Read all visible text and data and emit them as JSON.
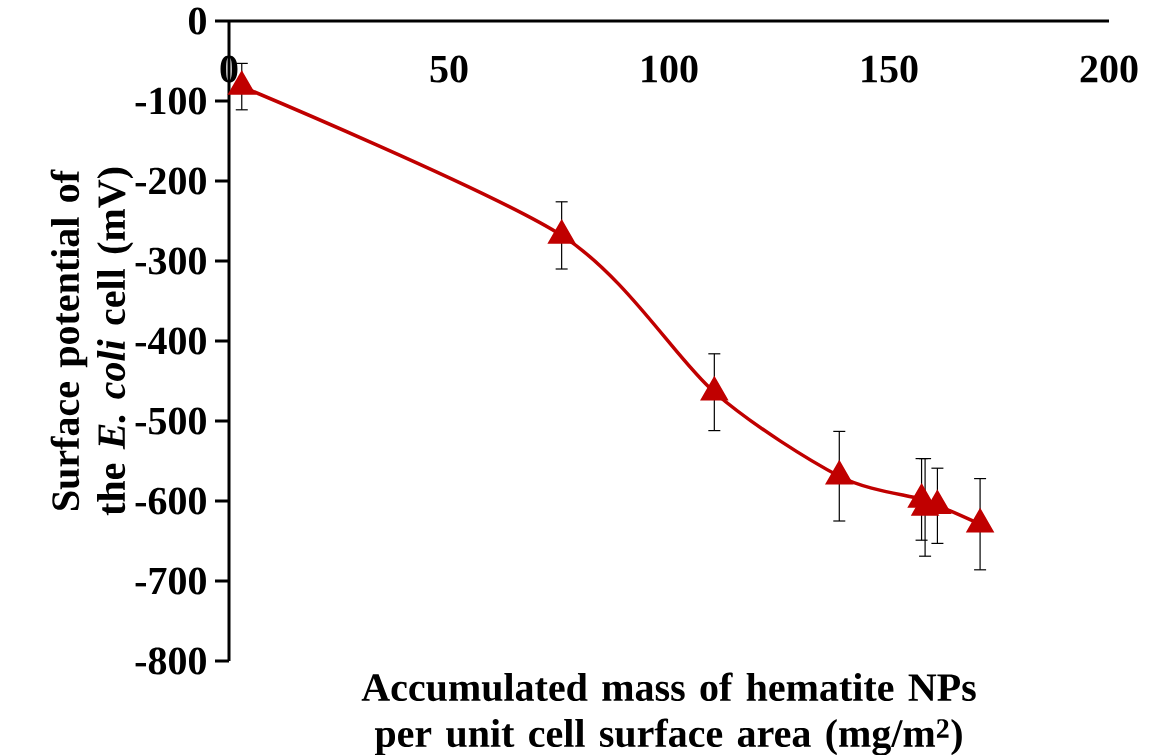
{
  "chart_data": {
    "type": "line",
    "xlabel": "Accumulated mass of hematite NPs per unit cell surface area (mg/m$^{2}$)",
    "ylabel": "Surface potential of the *E. coli* cell (mV)",
    "x": [
      2.9,
      75.6,
      110.3,
      138.7,
      157.4,
      158.2,
      161,
      170.7
    ],
    "values": [
      -82,
      -268,
      -464,
      -569,
      -598,
      -608,
      -606,
      -629
    ],
    "errors": [
      29,
      42,
      48,
      56,
      51,
      61,
      47,
      57
    ],
    "color": "#c00000",
    "marker": "triangle",
    "line_style": "solid",
    "grid": false,
    "xlim": [
      0,
      200
    ],
    "xticks": [
      0,
      50,
      100,
      150,
      200
    ],
    "ylim": [
      -800,
      0
    ],
    "yticks": [
      -800,
      -700,
      -600,
      -500,
      -400,
      -300,
      -200,
      -100,
      0
    ]
  }
}
